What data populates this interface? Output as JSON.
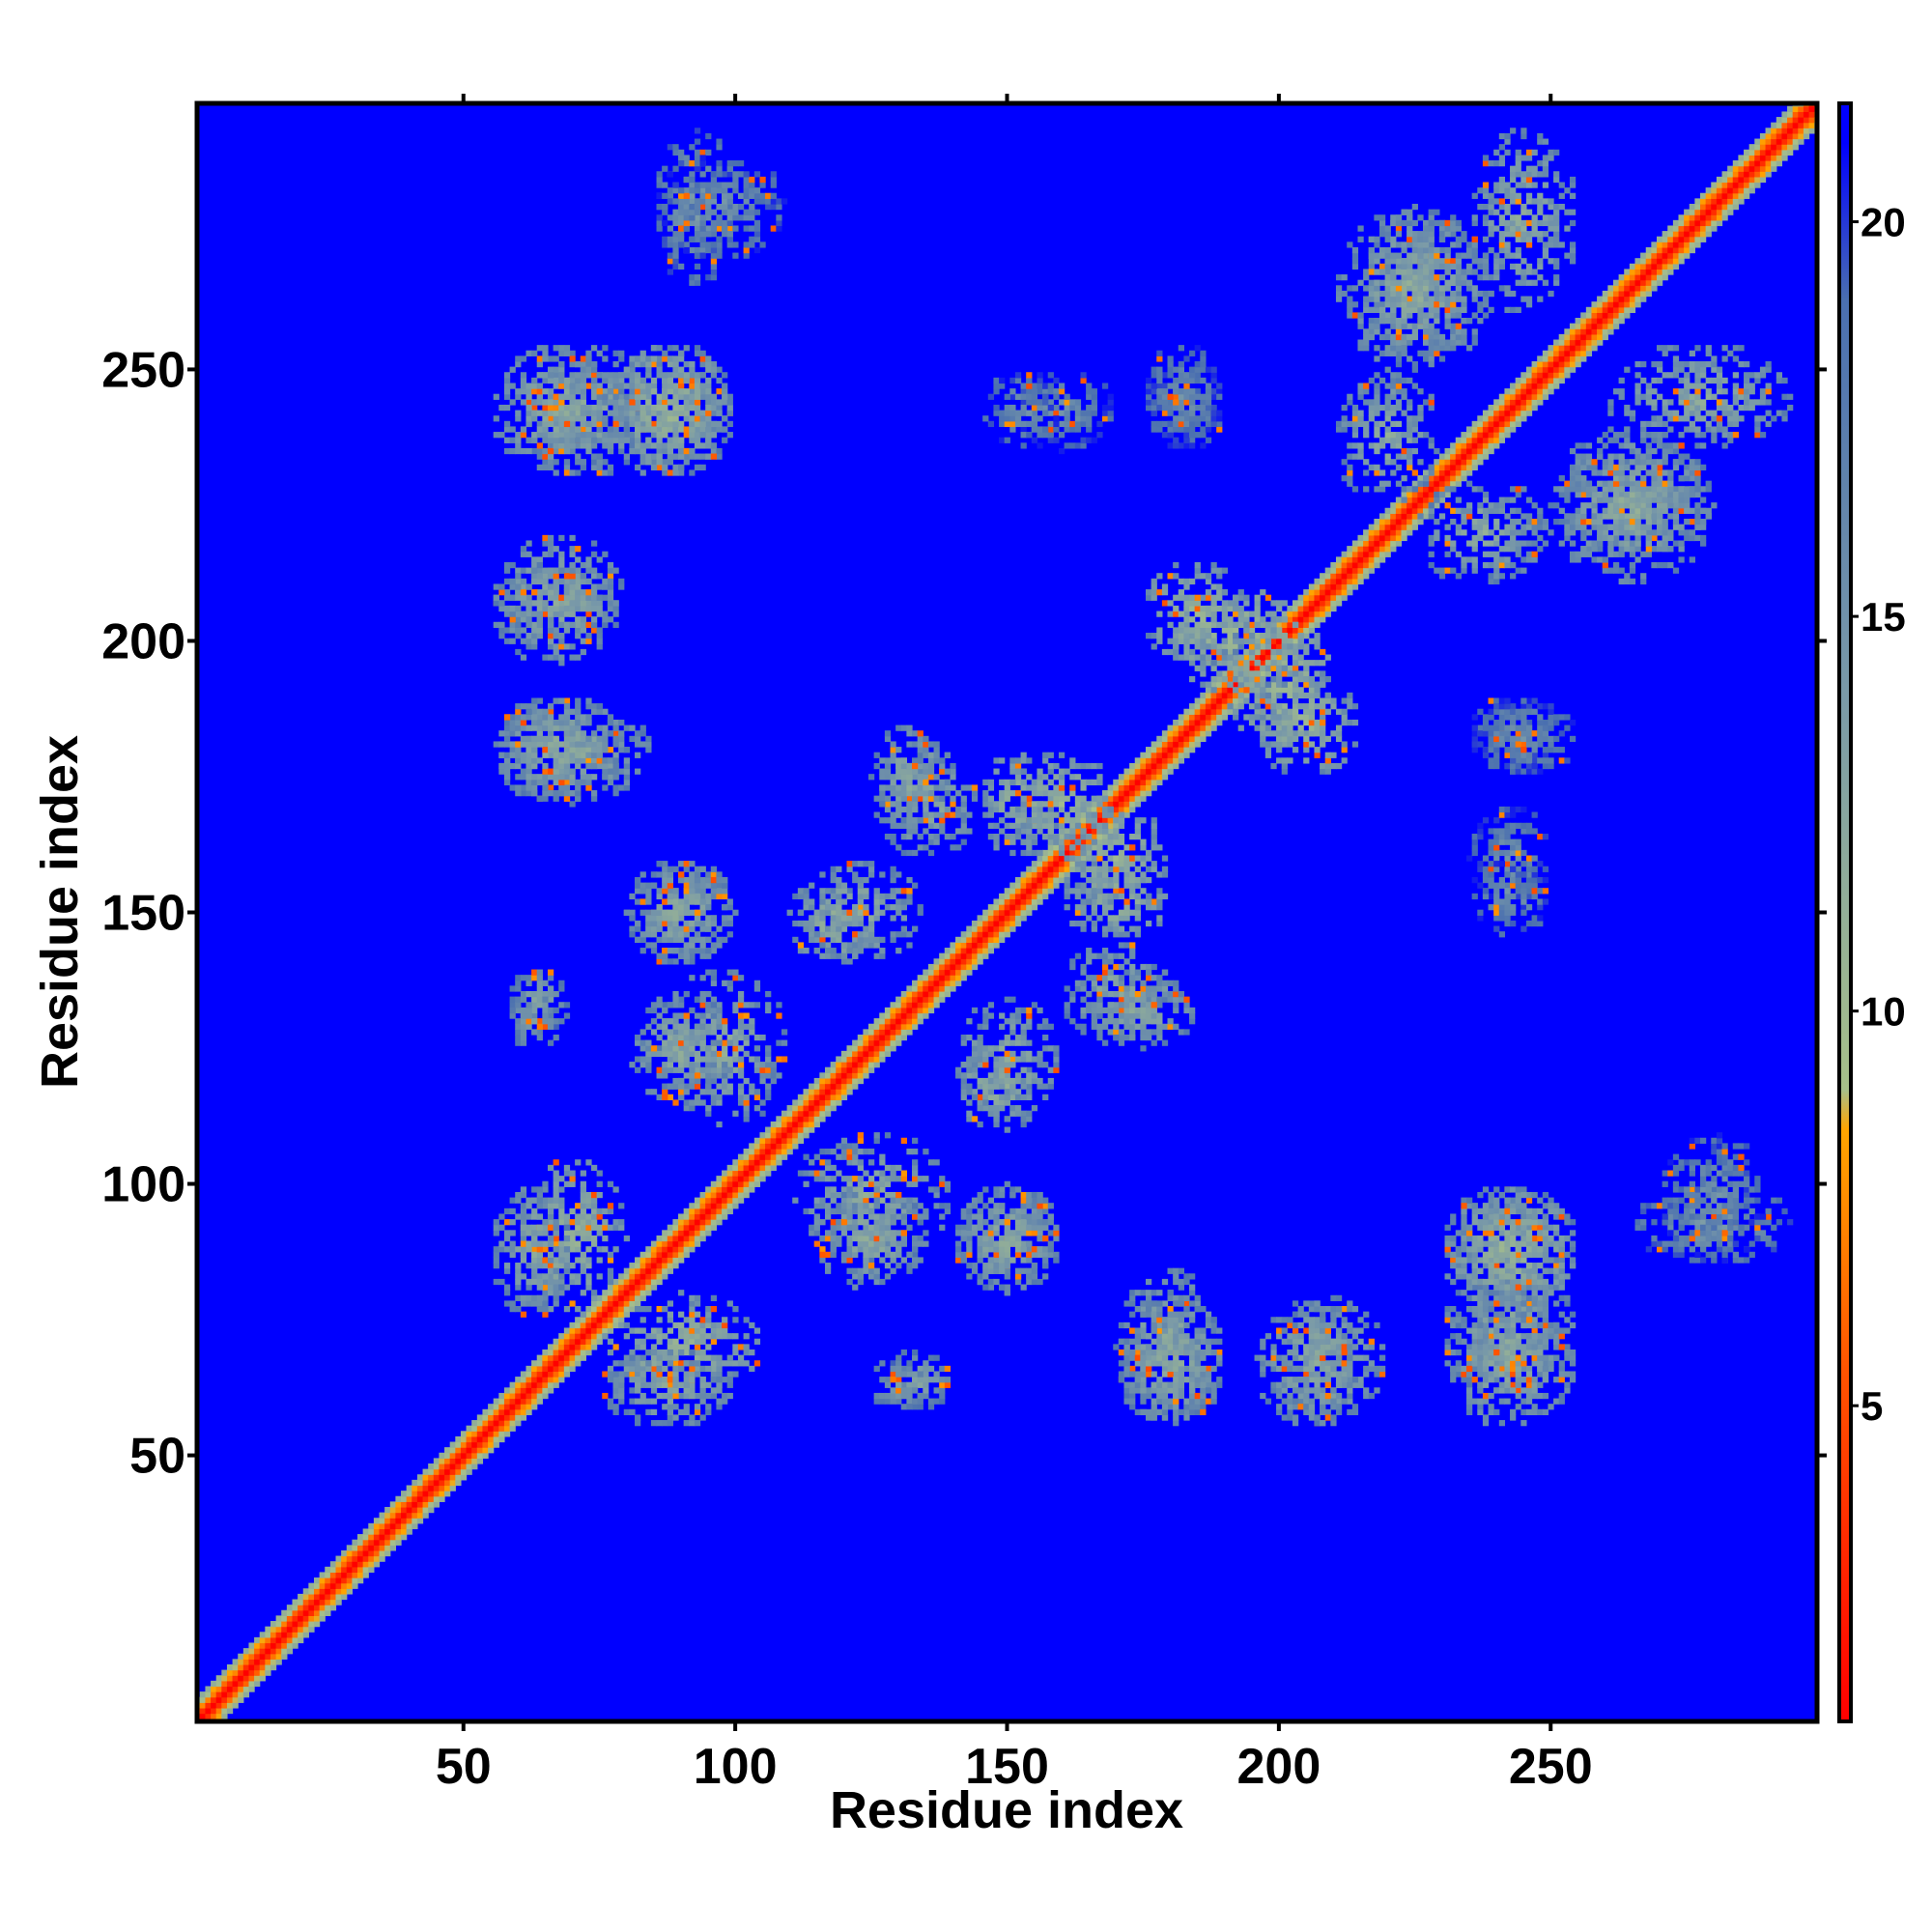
{
  "chart_data": {
    "type": "heatmap",
    "title": "",
    "xlabel": "Residue index",
    "ylabel": "Residue index",
    "xlim": [
      1,
      299
    ],
    "ylim": [
      1,
      299
    ],
    "x_ticks": [
      "50",
      "100",
      "150",
      "200",
      "250"
    ],
    "y_ticks": [
      "50",
      "100",
      "150",
      "200",
      "250"
    ],
    "x_tick_values": [
      50,
      100,
      150,
      200,
      250
    ],
    "y_tick_values": [
      50,
      100,
      150,
      200,
      250
    ],
    "colorbar": {
      "range": [
        1,
        21.5
      ],
      "ticks": [
        "5",
        "10",
        "15",
        "20"
      ],
      "tick_values": [
        5,
        10,
        15,
        20
      ],
      "stops": [
        {
          "value": 1,
          "color": "#ff0000"
        },
        {
          "value": 5.5,
          "color": "#ff5500"
        },
        {
          "value": 8.5,
          "color": "#ffa500"
        },
        {
          "value": 9.0,
          "color": "#a8c08a"
        },
        {
          "value": 14.0,
          "color": "#7a9aa8"
        },
        {
          "value": 19.0,
          "color": "#4a6fb0"
        },
        {
          "value": 21.0,
          "color": "#0000ff"
        }
      ]
    },
    "background_color": "#0000ff",
    "diagonal_band": {
      "residue_start": 1,
      "residue_end": 299,
      "distance_on_diagonal": 1
    },
    "contact_clusters": [
      {
        "x": [
          60,
          85
        ],
        "y": [
          230,
          255
        ],
        "distance": 12
      },
      {
        "x": [
          78,
          100
        ],
        "y": [
          230,
          255
        ],
        "distance": 12
      },
      {
        "x": [
          55,
          80
        ],
        "y": [
          195,
          220
        ],
        "distance": 12
      },
      {
        "x": [
          55,
          85
        ],
        "y": [
          170,
          190
        ],
        "distance": 12
      },
      {
        "x": [
          80,
          100
        ],
        "y": [
          140,
          160
        ],
        "distance": 12
      },
      {
        "x": [
          85,
          110
        ],
        "y": [
          110,
          140
        ],
        "distance": 12
      },
      {
        "x": [
          110,
          125
        ],
        "y": [
          140,
          155
        ],
        "distance": 11
      },
      {
        "x": [
          125,
          145
        ],
        "y": [
          160,
          180
        ],
        "distance": 12
      },
      {
        "x": [
          145,
          160
        ],
        "y": [
          160,
          180
        ],
        "distance": 11
      },
      {
        "x": [
          140,
          160
        ],
        "y": [
          110,
          135
        ],
        "distance": 12
      },
      {
        "x": [
          165,
          185
        ],
        "y": [
          125,
          140
        ],
        "distance": 12
      },
      {
        "x": [
          160,
          180
        ],
        "y": [
          150,
          170
        ],
        "distance": 11
      },
      {
        "x": [
          115,
          135
        ],
        "y": [
          80,
          100
        ],
        "distance": 12
      },
      {
        "x": [
          140,
          160
        ],
        "y": [
          80,
          100
        ],
        "distance": 12
      },
      {
        "x": [
          60,
          80
        ],
        "y": [
          75,
          105
        ],
        "distance": 11
      },
      {
        "x": [
          75,
          100
        ],
        "y": [
          55,
          70
        ],
        "distance": 12
      },
      {
        "x": [
          170,
          190
        ],
        "y": [
          55,
          80
        ],
        "distance": 12
      },
      {
        "x": [
          200,
          215
        ],
        "y": [
          55,
          80
        ],
        "distance": 12
      },
      {
        "x": [
          230,
          255
        ],
        "y": [
          55,
          80
        ],
        "distance": 12
      },
      {
        "x": [
          230,
          255
        ],
        "y": [
          75,
          100
        ],
        "distance": 11
      },
      {
        "x": [
          180,
          205
        ],
        "y": [
          190,
          210
        ],
        "distance": 10
      },
      {
        "x": [
          195,
          215
        ],
        "y": [
          175,
          195
        ],
        "distance": 11
      },
      {
        "x": [
          225,
          250
        ],
        "y": [
          210,
          230
        ],
        "distance": 12
      },
      {
        "x": [
          250,
          280
        ],
        "y": [
          215,
          235
        ],
        "distance": 12
      },
      {
        "x": [
          210,
          240
        ],
        "y": [
          250,
          280
        ],
        "distance": 12
      },
      {
        "x": [
          260,
          295
        ],
        "y": [
          235,
          255
        ],
        "distance": 12
      },
      {
        "x": [
          85,
          100
        ],
        "y": [
          265,
          295
        ],
        "distance": 14
      },
      {
        "x": [
          58,
          70
        ],
        "y": [
          128,
          140
        ],
        "distance": 13
      },
      {
        "x": [
          125,
          135
        ],
        "y": [
          58,
          68
        ],
        "distance": 13
      },
      {
        "x": [
          150,
          170
        ],
        "y": [
          235,
          250
        ],
        "distance": 15
      },
      {
        "x": [
          175,
          190
        ],
        "y": [
          235,
          250
        ],
        "distance": 15
      },
      {
        "x": [
          235,
          255
        ],
        "y": [
          175,
          190
        ],
        "distance": 15
      },
      {
        "x": [
          235,
          250
        ],
        "y": [
          145,
          160
        ],
        "distance": 15
      },
      {
        "x": [
          270,
          290
        ],
        "y": [
          85,
          110
        ],
        "distance": 15
      }
    ]
  }
}
